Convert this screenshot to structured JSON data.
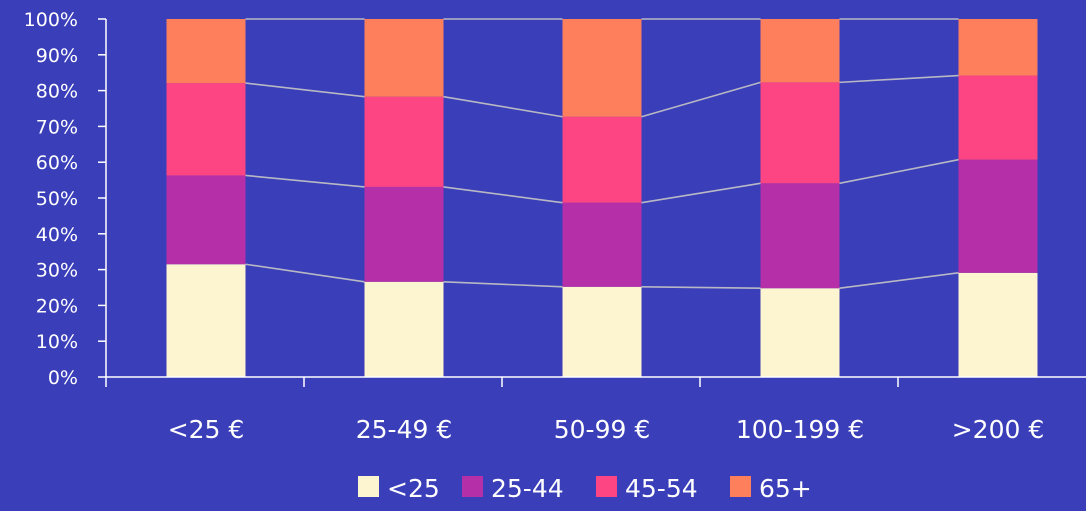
{
  "colors": {
    "background": "#3a3eb9",
    "text": "#ffffff",
    "axis": "#ffffff",
    "connector": "#b8b8c4"
  },
  "chart_data": {
    "type": "bar",
    "stacked": true,
    "percent": true,
    "title": "",
    "xlabel": "",
    "ylabel": "",
    "ylim": [
      0,
      100
    ],
    "yticks": [
      "0%",
      "10%",
      "20%",
      "30%",
      "40%",
      "50%",
      "60%",
      "70%",
      "80%",
      "90%",
      "100%"
    ],
    "categories": [
      "<25 €",
      "25-49 €",
      "50-99 €",
      "100-199 €",
      ">200 €"
    ],
    "series": [
      {
        "name": "<25",
        "color": "#fdf5cf",
        "values": [
          31.5,
          26.6,
          25.2,
          24.8,
          29.1
        ]
      },
      {
        "name": "25-44",
        "color": "#b52fa8",
        "values": [
          24.8,
          26.5,
          23.5,
          29.3,
          31.6
        ]
      },
      {
        "name": "45-54",
        "color": "#fd4583",
        "values": [
          25.8,
          25.2,
          24.0,
          28.2,
          23.5
        ]
      },
      {
        "name": "65+",
        "color": "#fe7f5c",
        "values": [
          17.9,
          21.7,
          27.3,
          17.7,
          15.8
        ]
      }
    ],
    "legend_position": "bottom",
    "connector_lines": true,
    "grid": false
  }
}
